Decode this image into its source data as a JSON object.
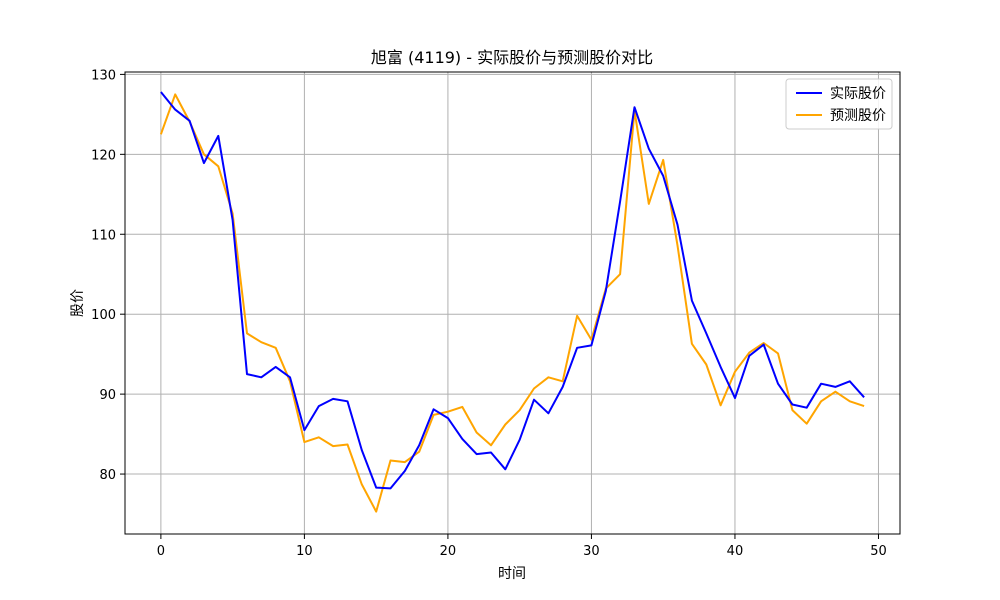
{
  "chart_data": {
    "type": "line",
    "title": "旭富 (4119) - 实际股价与预测股价对比",
    "xlabel": "时间",
    "ylabel": "股价",
    "xlim": [
      -2.5,
      51.5
    ],
    "ylim": [
      72.5,
      130.3
    ],
    "xticks": [
      0,
      10,
      20,
      30,
      40,
      50
    ],
    "yticks": [
      80,
      90,
      100,
      110,
      120,
      130
    ],
    "grid": true,
    "legend_position": "top-right",
    "x": [
      0,
      1,
      2,
      3,
      4,
      5,
      6,
      7,
      8,
      9,
      10,
      11,
      12,
      13,
      14,
      15,
      16,
      17,
      18,
      19,
      20,
      21,
      22,
      23,
      24,
      25,
      26,
      27,
      28,
      29,
      30,
      31,
      32,
      33,
      34,
      35,
      36,
      37,
      38,
      39,
      40,
      41,
      42,
      43,
      44,
      45,
      46,
      47,
      48,
      49
    ],
    "series": [
      {
        "name": "实际股价",
        "color": "#0000ff",
        "values": [
          127.8,
          125.6,
          124.2,
          118.9,
          122.3,
          111.8,
          92.5,
          92.1,
          93.4,
          92.1,
          85.5,
          88.5,
          89.4,
          89.1,
          83.0,
          78.3,
          78.2,
          80.4,
          83.6,
          88.1,
          87.0,
          84.4,
          82.5,
          82.7,
          80.6,
          84.3,
          89.3,
          87.6,
          90.9,
          95.8,
          96.1,
          102.9,
          114.1,
          125.9,
          120.7,
          117.3,
          111.2,
          101.7,
          97.6,
          93.4,
          89.5,
          94.8,
          96.2,
          91.3,
          88.7,
          88.3,
          91.3,
          90.9,
          91.6,
          89.6
        ]
      },
      {
        "name": "预测股价",
        "color": "#ffa500",
        "values": [
          122.5,
          127.5,
          124.1,
          120.0,
          118.5,
          112.6,
          97.6,
          96.5,
          95.8,
          91.6,
          84.0,
          84.6,
          83.5,
          83.7,
          78.7,
          75.3,
          81.7,
          81.5,
          82.8,
          87.4,
          87.8,
          88.4,
          85.2,
          83.6,
          86.2,
          88.0,
          90.7,
          92.1,
          91.6,
          99.8,
          96.8,
          103.2,
          105.0,
          125.5,
          113.8,
          119.3,
          108.6,
          96.3,
          93.7,
          88.6,
          92.8,
          95.2,
          96.4,
          95.1,
          88.0,
          86.3,
          89.1,
          90.3,
          89.1,
          88.5
        ]
      }
    ]
  }
}
